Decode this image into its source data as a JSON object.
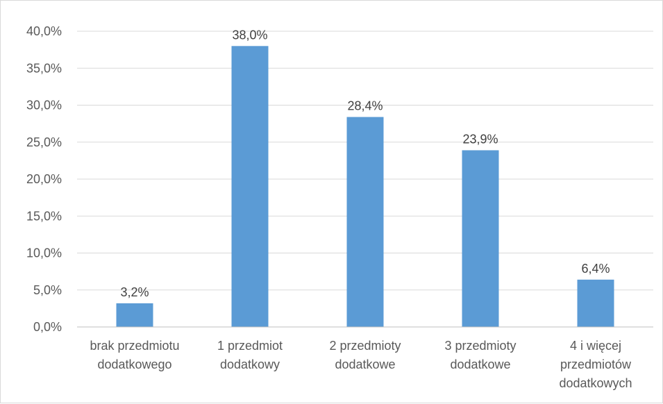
{
  "chart_data": {
    "type": "bar",
    "categories": [
      [
        "brak przedmiotu",
        "dodatkowego"
      ],
      [
        "1 przedmiot",
        "dodatkowy"
      ],
      [
        "2 przedmioty",
        "dodatkowe"
      ],
      [
        "3 przedmioty",
        "dodatkowe"
      ],
      [
        "4 i więcej",
        "przedmiotów",
        "dodatkowych"
      ]
    ],
    "values": [
      3.2,
      38.0,
      28.4,
      23.9,
      6.4
    ],
    "data_labels": [
      "3,2%",
      "38,0%",
      "28,4%",
      "23,9%",
      "6,4%"
    ],
    "title": "",
    "xlabel": "",
    "ylabel": "",
    "ylim": [
      0,
      40
    ],
    "yticks": [
      0,
      5,
      10,
      15,
      20,
      25,
      30,
      35,
      40
    ],
    "ytick_labels": [
      "0,0%",
      "5,0%",
      "10,0%",
      "15,0%",
      "20,0%",
      "25,0%",
      "30,0%",
      "35,0%",
      "40,0%"
    ],
    "grid": true,
    "legend": "none",
    "colors": {
      "bar": "#5b9bd5",
      "grid": "#d9d9d9",
      "axis": "#bfbfbf",
      "tick_text": "#595959",
      "label_text": "#404040"
    }
  }
}
